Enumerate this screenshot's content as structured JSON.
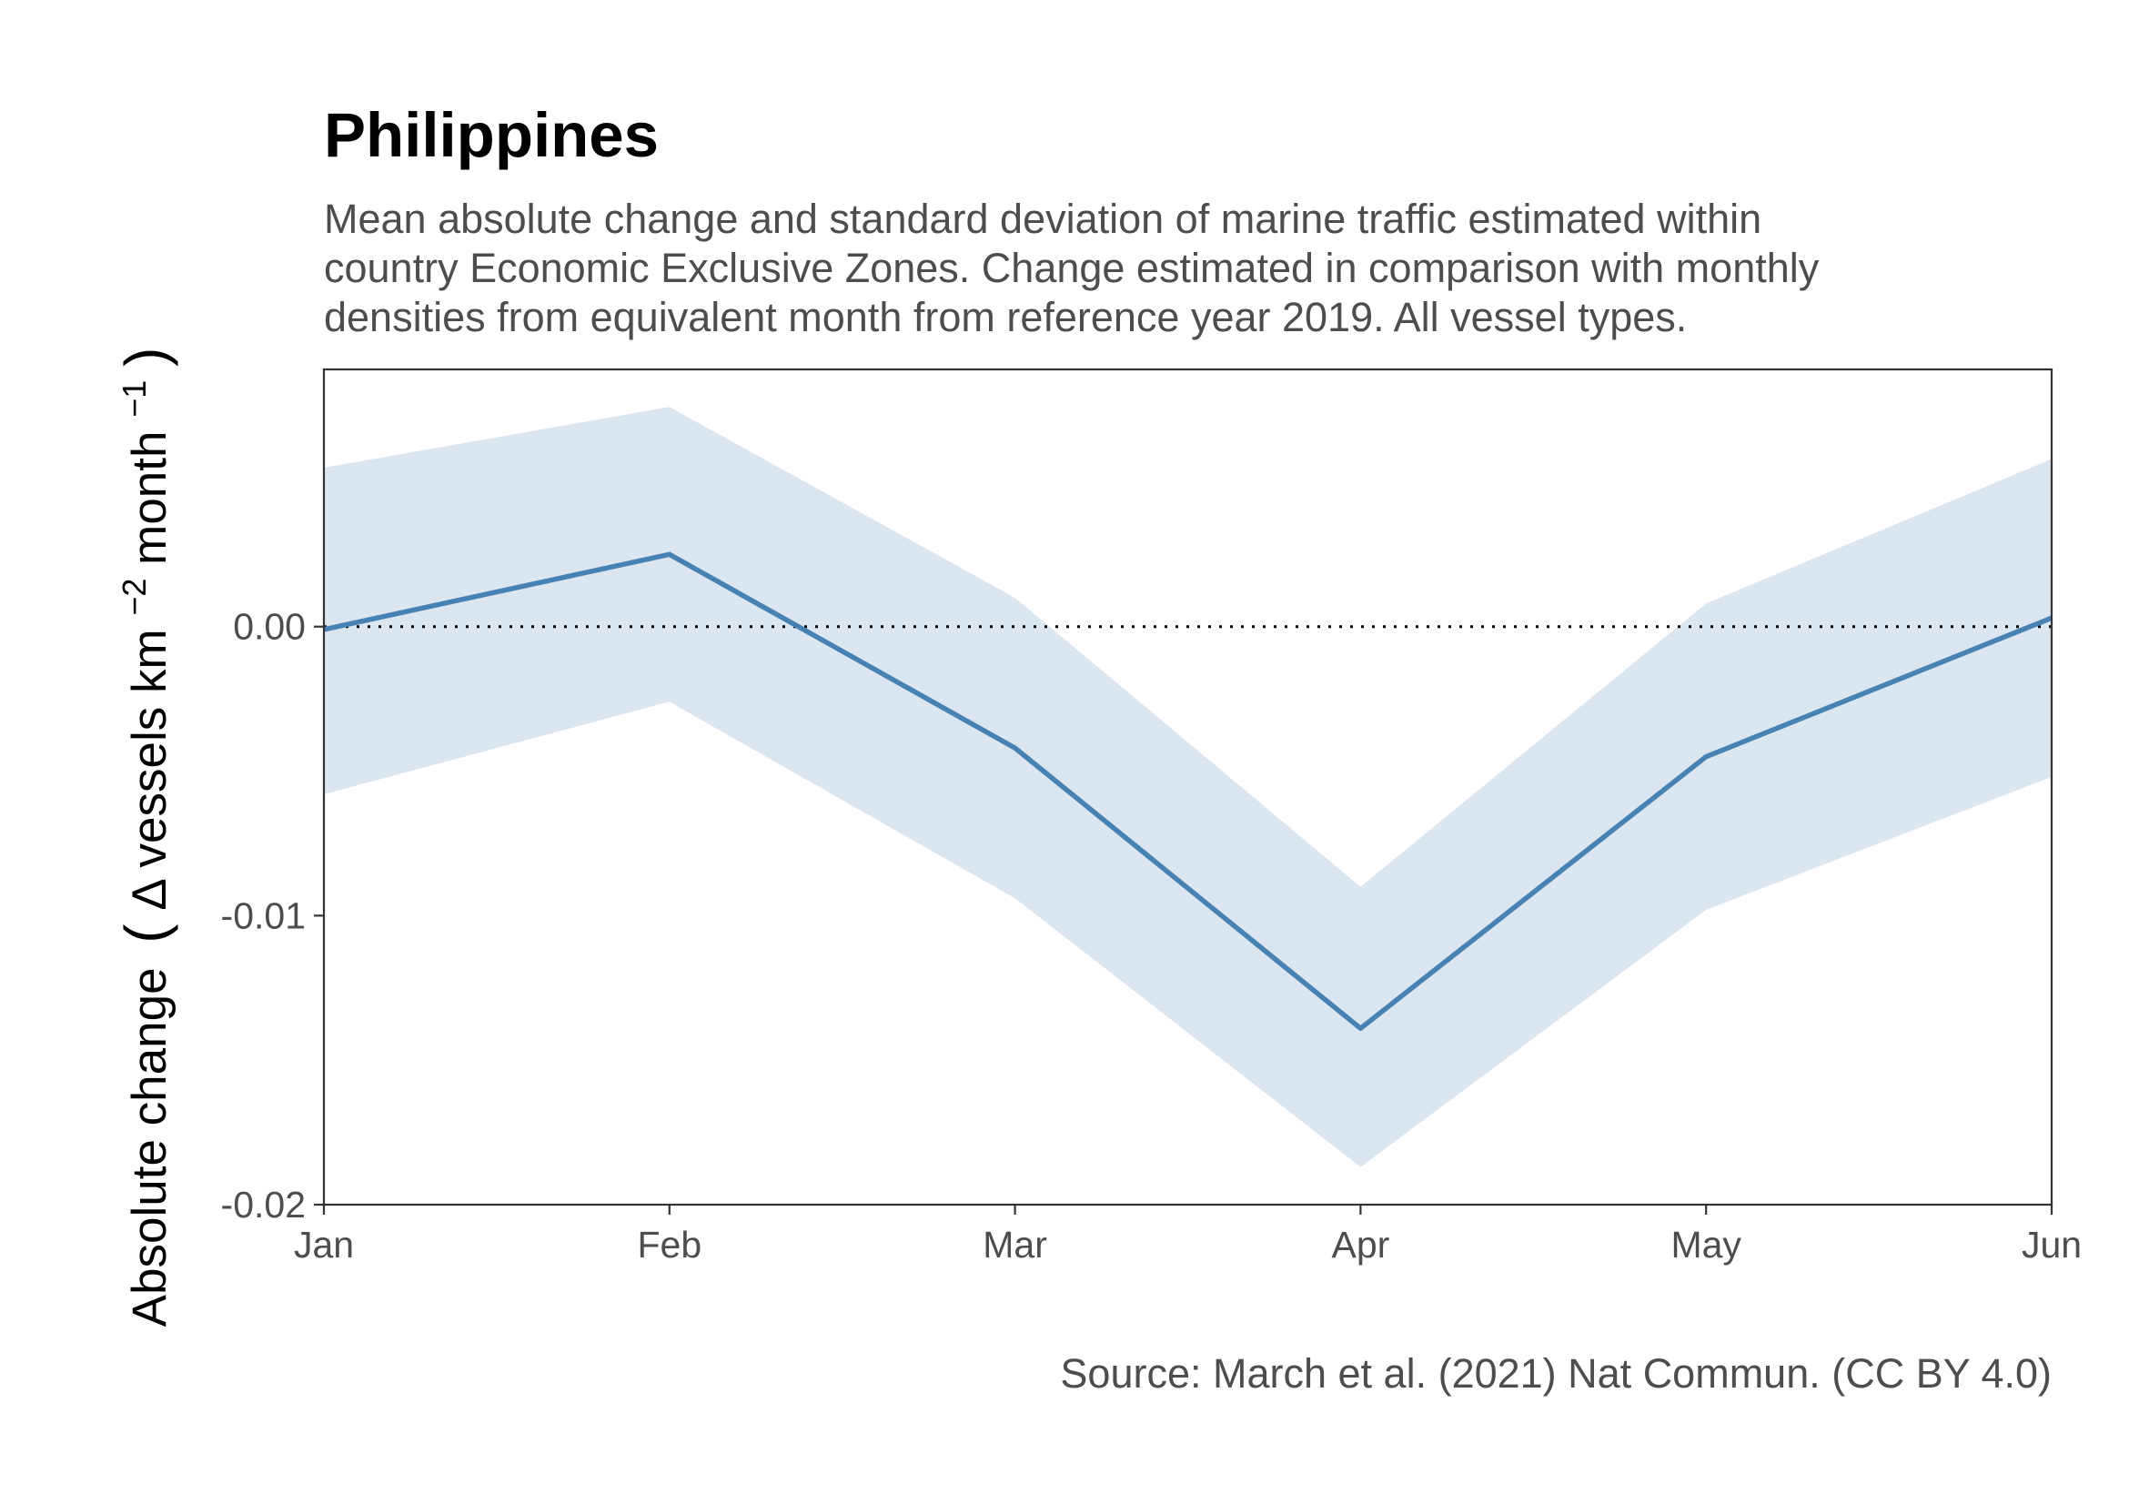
{
  "chart_data": {
    "type": "line",
    "title": "Philippines",
    "subtitle_lines": [
      "Mean absolute change and standard deviation of marine traffic estimated within",
      "country Economic Exclusive Zones. Change estimated in comparison with monthly",
      "densities from equivalent month from reference year 2019. All vessel types."
    ],
    "ylabel": {
      "prefix": "Absolute change",
      "open_paren": "(",
      "delta": "Δ",
      "units_text": " vessels km",
      "exp1": "−2",
      "month_text": " month",
      "exp2": "−1",
      "close_paren": ")"
    },
    "categories": [
      "Jan",
      "Feb",
      "Mar",
      "Apr",
      "May",
      "Jun"
    ],
    "series": [
      {
        "mean": [
          -0.0001,
          0.0025,
          -0.0042,
          -0.0139,
          -0.0045,
          0.0003
        ],
        "lower": [
          -0.0058,
          -0.0026,
          -0.0094,
          -0.0187,
          -0.0098,
          -0.0052
        ],
        "upper": [
          0.0055,
          0.0076,
          0.001,
          -0.009,
          0.0008,
          0.0058
        ],
        "line_color": "#4682b4",
        "ribbon_color": "#dce6f0"
      }
    ],
    "ylim": [
      -0.02,
      0.0089
    ],
    "yticks": [
      0.0,
      -0.01,
      -0.02
    ],
    "ytick_labels": [
      "0.00",
      "-0.01",
      "-0.02"
    ],
    "reference_line": {
      "y": 0,
      "style": "dotted",
      "color": "#000000"
    },
    "grid": false,
    "caption": "Source: March et al. (2021) Nat Commun. (CC BY 4.0)"
  }
}
